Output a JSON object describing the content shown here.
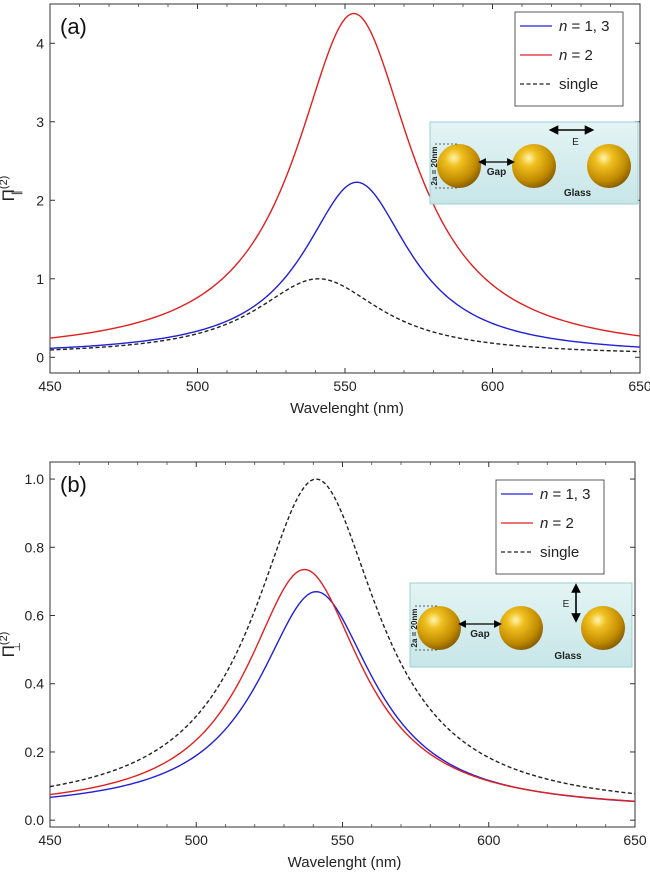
{
  "chart_data": [
    {
      "type": "line",
      "panel_label": "(a)",
      "xlabel": "Wavelenght (nm)",
      "ylabel_main": "Π",
      "ylabel_sup": "(2)",
      "ylabel_sub": "∥",
      "xlim": [
        450,
        650
      ],
      "ylim": [
        -0.2,
        4.5
      ],
      "xticks": [
        450,
        500,
        550,
        600,
        650
      ],
      "xtick_labels": [
        "450",
        "500",
        "550",
        "600",
        "650"
      ],
      "yticks": [
        0,
        1,
        2,
        3,
        4
      ],
      "ytick_labels": [
        "0",
        "1",
        "2",
        "3",
        "4"
      ],
      "grid": false,
      "legend_position": "top-right",
      "series": [
        {
          "name": "n = 1, 3",
          "color": "#2020d8",
          "dash": "solid",
          "peak_x": 554,
          "peak_y": 2.23,
          "width": 22,
          "baseline": 0.02
        },
        {
          "name": "n = 2",
          "color": "#e02020",
          "dash": "solid",
          "peak_x": 553,
          "peak_y": 4.38,
          "width": 24,
          "baseline": 0.02
        },
        {
          "name": "single",
          "color": "#222222",
          "dash": "dashed",
          "peak_x": 541,
          "peak_y": 1.0,
          "width": 26,
          "baseline": 0.02
        }
      ],
      "legend": [
        {
          "italic": "n",
          "text": " = 1, 3",
          "color": "#2020d8",
          "dash": "solid"
        },
        {
          "italic": "n",
          "text": " = 2",
          "color": "#e02020",
          "dash": "solid"
        },
        {
          "italic": "",
          "text": "single",
          "color": "#222222",
          "dash": "dashed"
        }
      ],
      "inset": {
        "field_direction": "horizontal",
        "field_label": "E",
        "gap_label": "Gap",
        "substrate_label": "Glass",
        "diameter_label": "2a = 20nm"
      }
    },
    {
      "type": "line",
      "panel_label": "(b)",
      "xlabel": "Wavelenght (nm)",
      "ylabel_main": "Π",
      "ylabel_sup": "(2)",
      "ylabel_sub": "⊥",
      "xlim": [
        450,
        650
      ],
      "ylim": [
        -0.02,
        1.05
      ],
      "xticks": [
        450,
        500,
        550,
        600,
        650
      ],
      "xtick_labels": [
        "450",
        "500",
        "550",
        "600",
        "650"
      ],
      "yticks": [
        0,
        0.2,
        0.4,
        0.6,
        0.8,
        1.0
      ],
      "ytick_labels": [
        "0.0",
        "0.2",
        "0.4",
        "0.6",
        "0.8",
        "1.0"
      ],
      "grid": false,
      "legend_position": "top-right",
      "series": [
        {
          "name": "n = 1, 3",
          "color": "#2020d8",
          "dash": "solid",
          "peak_x": 541,
          "peak_y": 0.67,
          "width": 24,
          "baseline": 0.025
        },
        {
          "name": "n = 2",
          "color": "#e02020",
          "dash": "solid",
          "peak_x": 537,
          "peak_y": 0.735,
          "width": 24,
          "baseline": 0.025
        },
        {
          "name": "single",
          "color": "#222222",
          "dash": "dashed",
          "peak_x": 541,
          "peak_y": 1.0,
          "width": 26,
          "baseline": 0.025
        }
      ],
      "legend": [
        {
          "italic": "n",
          "text": " = 1, 3",
          "color": "#2020d8",
          "dash": "solid"
        },
        {
          "italic": "n",
          "text": " = 2",
          "color": "#e02020",
          "dash": "solid"
        },
        {
          "italic": "",
          "text": "single",
          "color": "#222222",
          "dash": "dashed"
        }
      ],
      "inset": {
        "field_direction": "vertical",
        "field_label": "E",
        "gap_label": "Gap",
        "substrate_label": "Glass",
        "diameter_label": "2a = 20nm"
      }
    }
  ]
}
